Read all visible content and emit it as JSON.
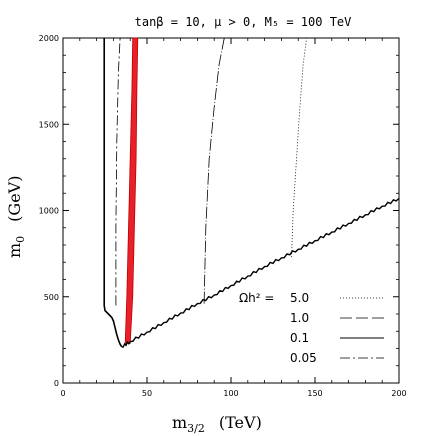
{
  "chart_data": {
    "type": "line",
    "title": "tanβ = 10,   μ > 0,   M₅ = 100 TeV",
    "xlabel_main": "m",
    "xlabel_sub": "3/2",
    "xlabel_unit": "(TeV)",
    "ylabel_main": "m",
    "ylabel_sub": "0",
    "ylabel_unit": "(GeV)",
    "xlim": [
      0,
      200
    ],
    "ylim": [
      0,
      2000
    ],
    "x_ticks": [
      0,
      50,
      100,
      150,
      200
    ],
    "y_ticks": [
      0,
      500,
      1000,
      1500,
      2000
    ],
    "legend": {
      "title": "Ωh² = ",
      "entries": [
        {
          "label": "5.0",
          "style": "dotted"
        },
        {
          "label": "1.0",
          "style": "long-dash"
        },
        {
          "label": "0.1",
          "style": "solid"
        },
        {
          "label": "0.05",
          "style": "dash-dot"
        }
      ]
    },
    "boundary_left": {
      "x": [
        24.5,
        24.5,
        24.5,
        25,
        27,
        29,
        30,
        31,
        32,
        33,
        34,
        35
      ],
      "y": [
        2000,
        1200,
        450,
        420,
        400,
        380,
        360,
        320,
        280,
        250,
        225,
        210
      ]
    },
    "boundary_right": {
      "x": [
        35,
        40,
        50,
        60,
        70,
        80,
        90,
        100,
        110,
        120,
        130,
        140,
        150,
        160,
        170,
        180,
        190,
        200
      ],
      "y": [
        210,
        240,
        295,
        350,
        405,
        460,
        510,
        565,
        620,
        675,
        725,
        775,
        825,
        875,
        925,
        975,
        1025,
        1070
      ]
    },
    "red_band": {
      "x_left": [
        37,
        38,
        39,
        40,
        41,
        41.5
      ],
      "x_right": [
        40,
        41.5,
        42.5,
        43.5,
        44,
        44.5
      ],
      "y": [
        230,
        500,
        900,
        1300,
        1700,
        2000
      ]
    },
    "contour_0_05": {
      "x": [
        31.5,
        31.5,
        32,
        33,
        34
      ],
      "y": [
        450,
        900,
        1400,
        1800,
        2000
      ]
    },
    "contour_1_0": {
      "x": [
        84,
        85,
        87,
        90,
        93,
        96
      ],
      "y": [
        460,
        900,
        1300,
        1600,
        1850,
        2000
      ]
    },
    "contour_5_0": {
      "x": [
        136,
        137,
        139,
        141,
        143,
        145
      ],
      "y": [
        730,
        1000,
        1300,
        1600,
        1850,
        2000
      ]
    }
  }
}
